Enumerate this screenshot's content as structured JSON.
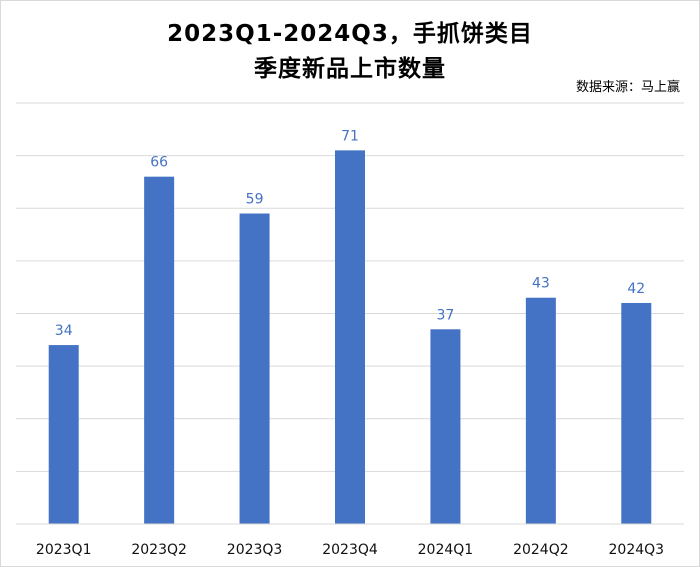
{
  "title_line1": "2023Q1-2024Q3，手抓饼类目",
  "title_line2": "季度新品上市数量",
  "source_note": "数据来源：马上赢",
  "chart_data": {
    "type": "bar",
    "title": "2023Q1-2024Q3，手抓饼类目 季度新品上市数量",
    "categories": [
      "2023Q1",
      "2023Q2",
      "2023Q3",
      "2023Q4",
      "2024Q1",
      "2024Q2",
      "2024Q3"
    ],
    "values": [
      34,
      66,
      59,
      71,
      37,
      43,
      42
    ],
    "data_labels": [
      "34",
      "66",
      "59",
      "71",
      "37",
      "43",
      "42"
    ],
    "ylim": [
      0,
      80
    ],
    "grid": true,
    "bar_color": "#4472c4",
    "xlabel": "",
    "ylabel": ""
  }
}
